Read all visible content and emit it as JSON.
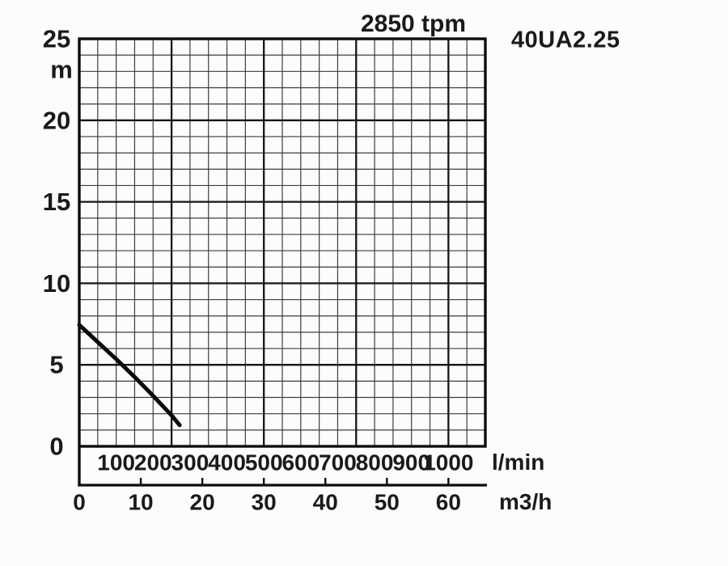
{
  "page": {
    "background_color": "#fcfcfb",
    "text_color": "#1a1a1a"
  },
  "chart_data": {
    "type": "line",
    "title": "2850 tpm",
    "model_label": "40UA2.25",
    "legend_position": "none",
    "grid": "minor+major",
    "y_axis": {
      "unit": "m",
      "range": [
        0,
        25
      ],
      "tick_labels": [
        25,
        20,
        15,
        10,
        5,
        0
      ],
      "minor_step": 1,
      "major_step": 5
    },
    "x_axis_lmin": {
      "unit": "l/min",
      "range": [
        0,
        1100
      ],
      "tick_labels": [
        100,
        200,
        300,
        400,
        500,
        600,
        700,
        800,
        900,
        1000
      ],
      "minor_step": 50,
      "major_step": 250
    },
    "x_axis_m3h": {
      "unit": "m3/h",
      "tick_labels": [
        0,
        10,
        20,
        30,
        40,
        50,
        60
      ],
      "lmin_per_unit": 16.6667
    },
    "series": [
      {
        "name": "40UA2.25",
        "points": [
          {
            "q_lmin": 0,
            "head_m": 7.45
          },
          {
            "q_lmin": 50,
            "head_m": 6.4
          },
          {
            "q_lmin": 100,
            "head_m": 5.35
          },
          {
            "q_lmin": 150,
            "head_m": 4.25
          },
          {
            "q_lmin": 200,
            "head_m": 3.1
          },
          {
            "q_lmin": 250,
            "head_m": 1.9
          },
          {
            "q_lmin": 272,
            "head_m": 1.3
          }
        ]
      }
    ],
    "colors": {
      "curve": "#0b0b0b",
      "grid_minor": "#3d3d3d",
      "grid_major": "#151515",
      "border": "#0d0d0d",
      "text": "#1a1a1a"
    }
  }
}
